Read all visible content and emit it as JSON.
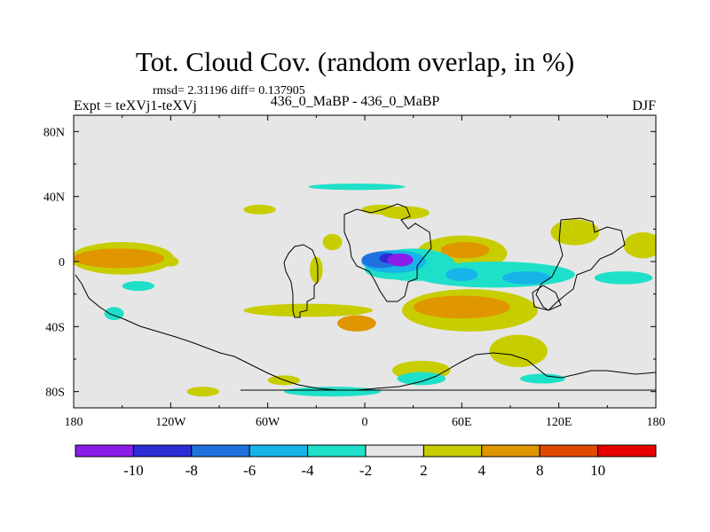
{
  "header": {
    "title": "Tot. Cloud Cov. (random overlap, in %)",
    "stats": "rmsd= 2.31196 diff= 0.137905",
    "experiment": "Expt = teXVj1-teXVj",
    "case_label": "436_0_MaBP - 436_0_MaBP",
    "season": "DJF"
  },
  "chart_data": {
    "type": "heatmap",
    "title": "Tot. Cloud Cov. (random overlap, in %)",
    "xlabel": "",
    "ylabel": "",
    "xlim": [
      -180,
      180
    ],
    "ylim": [
      -90,
      90
    ],
    "x_ticks": [
      {
        "value": -180,
        "label": "180"
      },
      {
        "value": -120,
        "label": "120W"
      },
      {
        "value": -60,
        "label": "60W"
      },
      {
        "value": 0,
        "label": "0"
      },
      {
        "value": 60,
        "label": "60E"
      },
      {
        "value": 120,
        "label": "120E"
      },
      {
        "value": 180,
        "label": "180"
      }
    ],
    "y_ticks": [
      {
        "value": 80,
        "label": "80N"
      },
      {
        "value": 40,
        "label": "40N"
      },
      {
        "value": 0,
        "label": "0"
      },
      {
        "value": -40,
        "label": "40S"
      },
      {
        "value": -80,
        "label": "80S"
      }
    ],
    "colorbar": {
      "levels": [
        -10,
        -8,
        -6,
        -4,
        -2,
        2,
        4,
        8,
        10
      ],
      "labels": [
        "-10",
        "-8",
        "-6",
        "-4",
        "-2",
        "2",
        "4",
        "8",
        "10"
      ],
      "colors": [
        "#8a1ee8",
        "#2c2cd6",
        "#1e72e0",
        "#16b4e8",
        "#1ee0c8",
        "#e6e6e6",
        "#c8cd00",
        "#e09600",
        "#e04a00",
        "#e60000"
      ]
    },
    "anomalies": [
      {
        "lon": -5,
        "lat": 46,
        "rx": 30,
        "ry": 2,
        "v": -3
      },
      {
        "lon": 10,
        "lat": 32,
        "rx": 12,
        "ry": 3,
        "v": 3
      },
      {
        "lon": 25,
        "lat": 30,
        "rx": 15,
        "ry": 4,
        "v": 3
      },
      {
        "lon": -65,
        "lat": 32,
        "rx": 10,
        "ry": 3,
        "v": 3
      },
      {
        "lon": 130,
        "lat": 18,
        "rx": 15,
        "ry": 8,
        "v": 3
      },
      {
        "lon": 60,
        "lat": 5,
        "rx": 28,
        "ry": 11,
        "v": 3
      },
      {
        "lon": 62,
        "lat": 7,
        "rx": 15,
        "ry": 5,
        "v": 5
      },
      {
        "lon": 172,
        "lat": 10,
        "rx": 12,
        "ry": 8,
        "v": 3
      },
      {
        "lon": -150,
        "lat": 2,
        "rx": 32,
        "ry": 10,
        "v": 3
      },
      {
        "lon": -152,
        "lat": 2,
        "rx": 28,
        "ry": 6,
        "v": 5
      },
      {
        "lon": -20,
        "lat": 12,
        "rx": 6,
        "ry": 5,
        "v": 3
      },
      {
        "lon": -30,
        "lat": -5,
        "rx": 4,
        "ry": 8,
        "v": 3
      },
      {
        "lon": -120,
        "lat": 0,
        "rx": 5,
        "ry": 3,
        "v": 3
      },
      {
        "lon": -155,
        "lat": -32,
        "rx": 6,
        "ry": 4,
        "v": -3
      },
      {
        "lon": -140,
        "lat": -15,
        "rx": 10,
        "ry": 3,
        "v": -3
      },
      {
        "lon": -35,
        "lat": -30,
        "rx": 40,
        "ry": 4,
        "v": 3
      },
      {
        "lon": -5,
        "lat": -38,
        "rx": 12,
        "ry": 5,
        "v": 5
      },
      {
        "lon": 20,
        "lat": -5,
        "rx": 20,
        "ry": 6,
        "v": -3
      },
      {
        "lon": 65,
        "lat": -30,
        "rx": 42,
        "ry": 13,
        "v": 3
      },
      {
        "lon": 60,
        "lat": -28,
        "rx": 30,
        "ry": 7,
        "v": 5
      },
      {
        "lon": 80,
        "lat": -8,
        "rx": 50,
        "ry": 8,
        "v": -3
      },
      {
        "lon": 30,
        "lat": -2,
        "rx": 26,
        "ry": 10,
        "v": -3
      },
      {
        "lon": 18,
        "lat": 0,
        "rx": 20,
        "ry": 7,
        "v": -5
      },
      {
        "lon": 10,
        "lat": 1,
        "rx": 12,
        "ry": 5,
        "v": -7
      },
      {
        "lon": 15,
        "lat": 2,
        "rx": 6,
        "ry": 3,
        "v": -9
      },
      {
        "lon": 22,
        "lat": 1,
        "rx": 8,
        "ry": 4,
        "v": -11
      },
      {
        "lon": 60,
        "lat": -8,
        "rx": 10,
        "ry": 4,
        "v": -5
      },
      {
        "lon": 100,
        "lat": -10,
        "rx": 15,
        "ry": 4,
        "v": -5
      },
      {
        "lon": 160,
        "lat": -10,
        "rx": 18,
        "ry": 4,
        "v": -3
      },
      {
        "lon": 35,
        "lat": -67,
        "rx": 18,
        "ry": 6,
        "v": 3
      },
      {
        "lon": 95,
        "lat": -55,
        "rx": 18,
        "ry": 10,
        "v": 3
      },
      {
        "lon": -20,
        "lat": -80,
        "rx": 30,
        "ry": 3,
        "v": -3
      },
      {
        "lon": 35,
        "lat": -72,
        "rx": 15,
        "ry": 4,
        "v": -3
      },
      {
        "lon": 110,
        "lat": -72,
        "rx": 14,
        "ry": 3,
        "v": -3
      },
      {
        "lon": -100,
        "lat": -80,
        "rx": 10,
        "ry": 3,
        "v": 3
      },
      {
        "lon": -50,
        "lat": -73,
        "rx": 10,
        "ry": 3,
        "v": 3
      }
    ]
  }
}
